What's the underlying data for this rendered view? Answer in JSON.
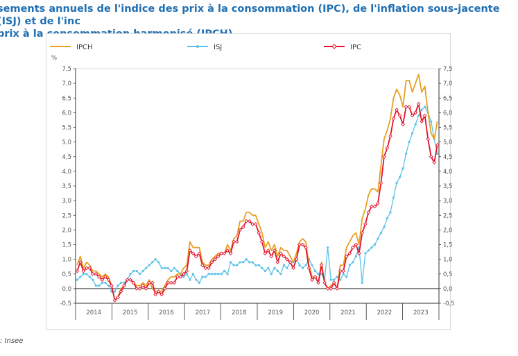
{
  "title": "sements annuels de l'indice des prix à la consommation (IPC), de l'inflation sous-jacente (ISJ) et de l'inc\n prix à la consommation harmonisé (IPCH)",
  "source": ": Insee",
  "colors": {
    "IPCH": "#e8a020",
    "ISJ": "#5bc2e7",
    "IPC": "#e3122b",
    "axis": "#333333",
    "grid": "#eeeeee"
  },
  "chart_data": {
    "type": "line",
    "unit_label": "%",
    "ylim": [
      -0.5,
      7.5
    ],
    "yticks": [
      "-0,5",
      "0,0",
      "0,5",
      "1,0",
      "1,5",
      "2,0",
      "2,5",
      "3,0",
      "3,5",
      "4,0",
      "4,5",
      "5,0",
      "5,5",
      "6,0",
      "6,5",
      "7,0",
      "7,5"
    ],
    "xlabels": [
      "2014",
      "2015",
      "2016",
      "2017",
      "2018",
      "2019",
      "2020",
      "2021",
      "2022",
      "2023"
    ],
    "legend": [
      "IPCH",
      "ISJ",
      "IPC"
    ],
    "months_per_year": 12,
    "series": [
      {
        "name": "IPCH",
        "values": [
          0.8,
          1.1,
          0.7,
          0.9,
          0.8,
          0.6,
          0.6,
          0.5,
          0.4,
          0.5,
          0.4,
          0.1,
          -0.4,
          -0.3,
          0.0,
          0.1,
          0.3,
          0.3,
          0.2,
          0.1,
          0.1,
          0.2,
          0.1,
          0.3,
          0.0,
          -0.1,
          -0.1,
          -0.1,
          0.1,
          0.3,
          0.4,
          0.4,
          0.5,
          0.5,
          0.7,
          0.8,
          1.6,
          1.4,
          1.4,
          1.4,
          0.9,
          0.8,
          0.8,
          1.0,
          1.1,
          1.2,
          1.2,
          1.2,
          1.5,
          1.3,
          1.7,
          1.8,
          2.3,
          2.3,
          2.6,
          2.6,
          2.5,
          2.5,
          2.2,
          1.9,
          1.4,
          1.6,
          1.3,
          1.5,
          1.1,
          1.4,
          1.3,
          1.3,
          1.1,
          0.9,
          1.2,
          1.6,
          1.7,
          1.6,
          0.8,
          0.4,
          0.4,
          0.2,
          0.9,
          0.2,
          0.0,
          0.1,
          0.2,
          0.0,
          0.8,
          0.8,
          1.4,
          1.6,
          1.8,
          1.9,
          1.5,
          2.4,
          2.7,
          3.2,
          3.4,
          3.4,
          3.3,
          4.2,
          5.1,
          5.4,
          5.8,
          6.5,
          6.8,
          6.6,
          6.2,
          7.1,
          7.1,
          6.7,
          7.0,
          7.3,
          6.7,
          6.9,
          6.0,
          5.3,
          5.1,
          5.7
        ]
      },
      {
        "name": "ISJ",
        "values": [
          0.3,
          0.4,
          0.5,
          0.5,
          0.4,
          0.3,
          0.1,
          0.1,
          0.2,
          0.2,
          0.1,
          -0.1,
          -0.1,
          0.1,
          0.2,
          0.2,
          0.3,
          0.5,
          0.6,
          0.6,
          0.5,
          0.6,
          0.7,
          0.8,
          0.9,
          1.0,
          0.9,
          0.7,
          0.7,
          0.7,
          0.6,
          0.7,
          0.6,
          0.5,
          0.4,
          0.5,
          0.3,
          0.5,
          0.3,
          0.2,
          0.4,
          0.4,
          0.5,
          0.5,
          0.5,
          0.5,
          0.5,
          0.6,
          0.5,
          0.9,
          0.8,
          0.8,
          0.9,
          0.9,
          1.0,
          0.9,
          0.9,
          0.8,
          0.8,
          0.7,
          0.6,
          0.7,
          0.5,
          0.7,
          0.6,
          0.5,
          0.8,
          0.7,
          0.9,
          0.9,
          1.0,
          0.8,
          0.7,
          0.8,
          1.0,
          0.8,
          0.6,
          0.5,
          0.5,
          0.3,
          1.4,
          0.3,
          0.3,
          0.4,
          0.3,
          0.5,
          0.4,
          0.8,
          0.9,
          1.1,
          1.4,
          0.2,
          1.2,
          1.3,
          1.4,
          1.5,
          1.7,
          1.9,
          2.1,
          2.4,
          2.6,
          3.1,
          3.6,
          3.8,
          4.1,
          4.6,
          5.0,
          5.3,
          5.6,
          5.9,
          6.1,
          6.2,
          6.0,
          5.7,
          5.1,
          4.6
        ]
      },
      {
        "name": "IPC",
        "values": [
          0.6,
          0.9,
          0.6,
          0.7,
          0.7,
          0.5,
          0.5,
          0.4,
          0.3,
          0.4,
          0.3,
          0.1,
          -0.4,
          -0.3,
          -0.1,
          0.1,
          0.3,
          0.3,
          0.2,
          0.0,
          0.0,
          0.1,
          0.0,
          0.2,
          0.2,
          -0.2,
          -0.1,
          -0.2,
          0.0,
          0.2,
          0.2,
          0.2,
          0.4,
          0.4,
          0.5,
          0.6,
          1.3,
          1.2,
          1.1,
          1.2,
          0.8,
          0.7,
          0.7,
          0.9,
          1.0,
          1.1,
          1.2,
          1.2,
          1.3,
          1.2,
          1.6,
          1.6,
          2.0,
          2.1,
          2.3,
          2.3,
          2.2,
          2.2,
          1.9,
          1.6,
          1.2,
          1.3,
          1.1,
          1.3,
          0.9,
          1.2,
          1.1,
          1.0,
          0.9,
          0.7,
          1.0,
          1.5,
          1.5,
          1.4,
          0.7,
          0.3,
          0.4,
          0.2,
          0.8,
          0.2,
          0.0,
          0.0,
          0.2,
          0.0,
          0.6,
          0.6,
          1.1,
          1.2,
          1.4,
          1.5,
          1.2,
          1.9,
          2.2,
          2.6,
          2.8,
          2.8,
          2.9,
          3.6,
          4.5,
          4.8,
          5.2,
          5.8,
          6.1,
          5.9,
          5.6,
          6.2,
          6.2,
          5.9,
          6.0,
          6.3,
          5.7,
          5.9,
          5.1,
          4.5,
          4.3,
          4.9
        ]
      }
    ]
  }
}
